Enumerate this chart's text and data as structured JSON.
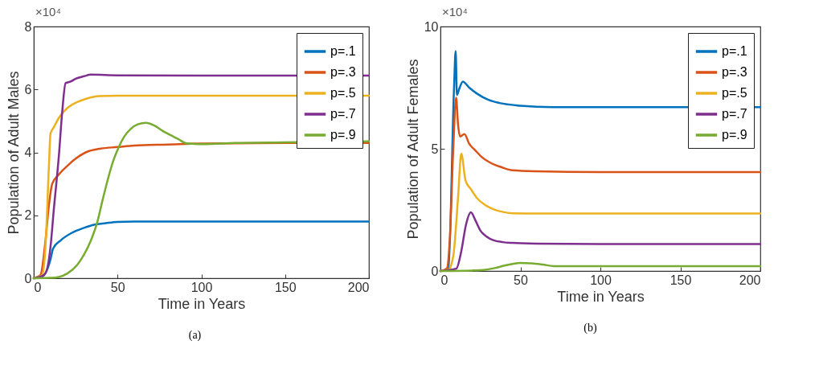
{
  "chart_data": [
    {
      "type": "line",
      "xlabel": "Time in Years",
      "ylabel": "Population of Adult Males",
      "annotations": [
        "×10⁴",
        "(a)"
      ],
      "xlim": [
        0,
        200
      ],
      "xticks": [
        0,
        50,
        100,
        150,
        200
      ],
      "ylim": [
        0,
        8
      ],
      "yticks": [
        0,
        2,
        4,
        6,
        8
      ],
      "grid": false,
      "legend": "top right",
      "series": [
        {
          "name": "p=.1",
          "color": "#0072bd",
          "x": [
            0,
            5,
            10,
            11.5,
            16,
            23,
            30,
            36,
            43,
            50,
            60,
            80,
            100,
            150,
            200
          ],
          "values": [
            0,
            0.05,
            0.6,
            0.94,
            1.2,
            1.45,
            1.6,
            1.7,
            1.75,
            1.79,
            1.8,
            1.8,
            1.8,
            1.8,
            1.8
          ]
        },
        {
          "name": "p=.3",
          "color": "#d95319",
          "x": [
            0,
            4,
            7,
            9,
            11,
            15,
            20,
            25,
            31,
            40,
            50,
            60,
            80,
            100,
            150,
            200
          ],
          "values": [
            0,
            0.1,
            1.2,
            2.3,
            3.0,
            3.3,
            3.57,
            3.8,
            4.0,
            4.12,
            4.17,
            4.22,
            4.25,
            4.28,
            4.3,
            4.3
          ]
        },
        {
          "name": "p=.5",
          "color": "#edb120",
          "x": [
            0,
            5,
            7,
            9,
            10,
            12,
            15,
            18,
            21,
            26,
            31,
            39,
            50,
            70,
            100,
            150,
            200
          ],
          "values": [
            0,
            0.1,
            1.0,
            3.5,
            4.6,
            4.8,
            5.1,
            5.3,
            5.45,
            5.6,
            5.7,
            5.79,
            5.8,
            5.8,
            5.8,
            5.8,
            5.8
          ]
        },
        {
          "name": "p=.7",
          "color": "#7e2f8e",
          "x": [
            0,
            6,
            8,
            10,
            12,
            15,
            17,
            19,
            22,
            25,
            30,
            34,
            50,
            100,
            150,
            200
          ],
          "values": [
            0,
            0.1,
            0.3,
            1.0,
            2.2,
            3.9,
            5.3,
            6.2,
            6.25,
            6.34,
            6.42,
            6.47,
            6.45,
            6.44,
            6.44,
            6.44
          ]
        },
        {
          "name": "p=.9",
          "color": "#77ac30",
          "x": [
            0,
            10,
            15,
            20,
            26,
            30,
            34,
            38,
            41,
            44,
            47.5,
            51,
            54,
            58,
            62,
            67,
            72,
            77,
            81.5,
            86,
            91,
            96,
            101,
            120,
            150,
            200
          ],
          "values": [
            0,
            0.01,
            0.04,
            0.15,
            0.43,
            0.75,
            1.19,
            1.8,
            2.47,
            3.1,
            3.74,
            4.2,
            4.5,
            4.75,
            4.89,
            4.94,
            4.85,
            4.68,
            4.55,
            4.43,
            4.29,
            4.27,
            4.26,
            4.3,
            4.32,
            4.35
          ]
        }
      ]
    },
    {
      "type": "line",
      "xlabel": "Time in Years",
      "ylabel": "Population of Adult Females",
      "annotations": [
        "×10⁴",
        "(b)"
      ],
      "xlim": [
        0,
        200
      ],
      "xticks": [
        0,
        50,
        100,
        150,
        200
      ],
      "ylim": [
        0,
        10
      ],
      "yticks": [
        0,
        5,
        10
      ],
      "grid": false,
      "legend": "top right",
      "series": [
        {
          "name": "p=.1",
          "color": "#0072bd",
          "x": [
            0,
            5,
            8.5,
            9.5,
            10.3,
            12,
            14,
            18,
            23,
            30,
            37,
            50,
            70,
            100,
            150,
            200
          ],
          "values": [
            0,
            0.1,
            7.5,
            9.0,
            7.2,
            7.5,
            7.75,
            7.5,
            7.25,
            7.0,
            6.87,
            6.76,
            6.7,
            6.7,
            6.7,
            6.7
          ]
        },
        {
          "name": "p=.3",
          "color": "#d95319",
          "x": [
            0,
            4,
            6,
            8,
            9.8,
            11,
            12.3,
            15,
            18,
            21.6,
            26,
            32,
            38,
            45,
            60,
            100,
            150,
            200
          ],
          "values": [
            0,
            0.1,
            1.5,
            5.0,
            7.1,
            6.0,
            5.5,
            5.6,
            5.2,
            4.95,
            4.65,
            4.4,
            4.25,
            4.12,
            4.08,
            4.05,
            4.05,
            4.05
          ]
        },
        {
          "name": "p=.5",
          "color": "#edb120",
          "x": [
            0,
            5,
            8,
            11,
            13,
            15.7,
            19,
            23,
            28,
            33,
            38,
            45,
            60,
            100,
            150,
            200
          ],
          "values": [
            0,
            0.05,
            0.6,
            3.0,
            4.8,
            3.7,
            3.35,
            2.97,
            2.7,
            2.53,
            2.43,
            2.36,
            2.35,
            2.35,
            2.35,
            2.35
          ]
        },
        {
          "name": "p=.7",
          "color": "#7e2f8e",
          "x": [
            0,
            10,
            13,
            16,
            19,
            22,
            25,
            29,
            33,
            39,
            45,
            60,
            100,
            150,
            200
          ],
          "values": [
            0,
            0.1,
            0.8,
            1.9,
            2.4,
            2.05,
            1.65,
            1.4,
            1.26,
            1.18,
            1.15,
            1.12,
            1.1,
            1.1,
            1.1
          ]
        },
        {
          "name": "p=.9",
          "color": "#77ac30",
          "x": [
            0,
            20,
            28,
            34,
            40,
            45,
            50,
            57,
            64,
            71,
            80,
            100,
            150,
            200
          ],
          "values": [
            0,
            0.02,
            0.05,
            0.12,
            0.22,
            0.29,
            0.33,
            0.31,
            0.26,
            0.2,
            0.2,
            0.2,
            0.2,
            0.2
          ]
        }
      ]
    }
  ]
}
